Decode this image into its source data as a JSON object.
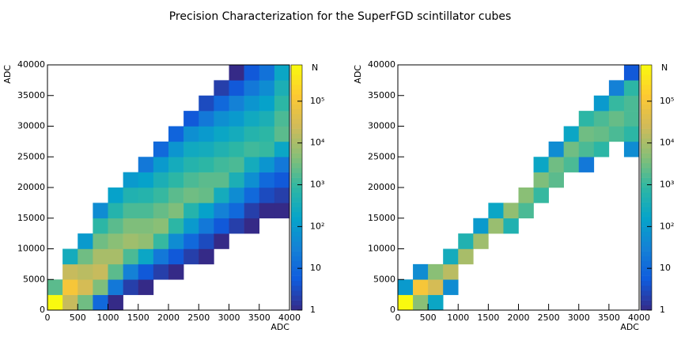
{
  "title": "Precision Characterization for the SuperFGD scintillator cubes",
  "chart_data": [
    {
      "type": "heatmap",
      "x_label": "ADC",
      "y_label": "ADC",
      "z_label": "N",
      "log_z": true,
      "xbins": [
        0,
        250,
        500,
        750,
        1000,
        1250,
        1500,
        1750,
        2000,
        2250,
        2500,
        2750,
        3000,
        3250,
        3500,
        3750,
        4000
      ],
      "ybins": [
        0,
        2500,
        5000,
        7500,
        10000,
        12500,
        15000,
        17500,
        20000,
        22500,
        25000,
        27500,
        30000,
        32500,
        35000,
        37500,
        40000
      ],
      "values": [
        [
          700000,
          2000,
          0,
          0,
          0,
          0,
          0,
          0,
          0,
          0,
          0,
          0,
          0,
          0,
          0,
          0
        ],
        [
          20000,
          100000,
          20000,
          300,
          0,
          0,
          0,
          0,
          0,
          0,
          0,
          0,
          0,
          0,
          0,
          0
        ],
        [
          3000,
          30000,
          15000,
          3000,
          100,
          0,
          0,
          0,
          0,
          0,
          0,
          0,
          0,
          0,
          0,
          0
        ],
        [
          10,
          4000,
          20000,
          10000,
          3000,
          800,
          50,
          0,
          0,
          0,
          0,
          0,
          0,
          0,
          0,
          0
        ],
        [
          1,
          20,
          2000,
          10000,
          5000,
          2000,
          600,
          150,
          0,
          0,
          0,
          0,
          0,
          0,
          0,
          0
        ],
        [
          0,
          2,
          30,
          1500,
          8000,
          4000,
          1500,
          500,
          100,
          0,
          0,
          0,
          0,
          0,
          0,
          0
        ],
        [
          0,
          1,
          5,
          200,
          6000,
          4000,
          1500,
          600,
          150,
          20,
          0,
          0,
          0,
          0,
          0,
          0
        ],
        [
          0,
          0,
          2,
          20,
          1000,
          5000,
          2500,
          1000,
          400,
          100,
          10,
          0,
          0,
          0,
          0,
          0
        ],
        [
          0,
          0,
          1,
          5,
          50,
          800,
          4000,
          2000,
          800,
          300,
          80,
          8,
          0,
          0,
          0,
          0
        ],
        [
          0,
          0,
          0,
          2,
          10,
          100,
          600,
          3000,
          1500,
          600,
          250,
          60,
          5,
          0,
          0,
          0
        ],
        [
          0,
          0,
          0,
          1,
          3,
          20,
          150,
          2500,
          2000,
          800,
          300,
          100,
          20,
          3,
          0,
          0
        ],
        [
          0,
          0,
          0,
          0,
          1,
          5,
          30,
          300,
          2000,
          1200,
          500,
          200,
          60,
          10,
          2,
          0
        ],
        [
          0,
          0,
          0,
          0,
          0,
          2,
          10,
          50,
          400,
          1500,
          800,
          300,
          100,
          30,
          5,
          1
        ],
        [
          0,
          0,
          0,
          0,
          0,
          1,
          2,
          10,
          60,
          300,
          1200,
          600,
          250,
          80,
          20,
          5
        ],
        [
          0,
          0,
          0,
          0,
          0,
          0,
          1,
          3,
          10,
          80,
          1000,
          800,
          400,
          150,
          50,
          15
        ],
        [
          0,
          0,
          0,
          0,
          0,
          0,
          1,
          2,
          5,
          20,
          200,
          2000,
          1500,
          800,
          400,
          200
        ]
      ],
      "xlim": [
        0,
        4000
      ],
      "ylim": [
        0,
        40000
      ],
      "zlim": [
        1,
        740000
      ],
      "xticks": [
        0,
        500,
        1000,
        1500,
        2000,
        2500,
        3000,
        3500,
        4000
      ],
      "yticks": [
        0,
        5000,
        10000,
        15000,
        20000,
        25000,
        30000,
        35000,
        40000
      ],
      "zticks": [
        1,
        10,
        {
          "value": 100,
          "label": "10²"
        },
        {
          "value": 1000,
          "label": "10³"
        },
        {
          "value": 10000,
          "label": "10⁴"
        },
        {
          "value": 100000,
          "label": "10⁵"
        }
      ]
    },
    {
      "type": "heatmap",
      "x_label": "ADC",
      "y_label": "ADC",
      "z_label": "N",
      "log_z": true,
      "xbins": [
        0,
        250,
        500,
        750,
        1000,
        1250,
        1500,
        1750,
        2000,
        2250,
        2500,
        2750,
        3000,
        3250,
        3500,
        3750,
        4000
      ],
      "ybins": [
        0,
        2500,
        5000,
        7500,
        10000,
        12500,
        15000,
        17500,
        20000,
        22500,
        25000,
        27500,
        30000,
        32500,
        35000,
        37500,
        40000
      ],
      "values": [
        [
          700000,
          100,
          0,
          0,
          0,
          0,
          0,
          0,
          0,
          0,
          0,
          0,
          0,
          0,
          0,
          0
        ],
        [
          5000,
          100000,
          50,
          0,
          0,
          0,
          0,
          0,
          0,
          0,
          0,
          0,
          0,
          0,
          0,
          0
        ],
        [
          200,
          30000,
          5000,
          0,
          0,
          0,
          0,
          0,
          0,
          0,
          0,
          0,
          0,
          0,
          0,
          0
        ],
        [
          0,
          50,
          15000,
          300,
          0,
          0,
          0,
          0,
          0,
          0,
          0,
          0,
          0,
          0,
          0,
          0
        ],
        [
          0,
          0,
          0,
          10000,
          500,
          0,
          0,
          0,
          0,
          0,
          0,
          0,
          0,
          0,
          0,
          0
        ],
        [
          0,
          0,
          0,
          0,
          8000,
          100,
          0,
          0,
          0,
          0,
          0,
          0,
          0,
          0,
          0,
          0
        ],
        [
          0,
          0,
          0,
          0,
          0,
          7000,
          200,
          0,
          0,
          0,
          0,
          0,
          0,
          0,
          0,
          0
        ],
        [
          0,
          0,
          0,
          0,
          0,
          500,
          6000,
          0,
          0,
          0,
          0,
          0,
          0,
          0,
          0,
          0
        ],
        [
          0,
          0,
          0,
          0,
          0,
          0,
          1500,
          5000,
          0,
          0,
          0,
          0,
          0,
          0,
          0,
          0
        ],
        [
          0,
          0,
          0,
          0,
          0,
          0,
          0,
          1000,
          4000,
          200,
          0,
          0,
          0,
          0,
          0,
          0
        ],
        [
          0,
          0,
          0,
          0,
          0,
          0,
          0,
          0,
          2000,
          3000,
          50,
          0,
          0,
          0,
          0,
          0
        ],
        [
          0,
          0,
          0,
          0,
          0,
          0,
          0,
          0,
          0,
          1500,
          3000,
          200,
          0,
          0,
          0,
          0
        ],
        [
          0,
          0,
          0,
          0,
          0,
          0,
          0,
          0,
          0,
          20,
          1500,
          3000,
          800,
          0,
          0,
          0
        ],
        [
          0,
          0,
          0,
          0,
          0,
          0,
          0,
          0,
          0,
          0,
          800,
          2500,
          1500,
          100,
          0,
          0
        ],
        [
          0,
          0,
          0,
          0,
          0,
          0,
          0,
          0,
          0,
          0,
          0,
          1500,
          2500,
          1000,
          30,
          0
        ],
        [
          0,
          0,
          0,
          0,
          0,
          0,
          0,
          0,
          0,
          0,
          50,
          800,
          1500,
          1500,
          800,
          5
        ]
      ],
      "xlim": [
        0,
        4000
      ],
      "ylim": [
        0,
        40000
      ],
      "zlim": [
        1,
        740000
      ],
      "xticks": [
        0,
        500,
        1000,
        1500,
        2000,
        2500,
        3000,
        3500,
        4000
      ],
      "yticks": [
        0,
        5000,
        10000,
        15000,
        20000,
        25000,
        30000,
        35000,
        40000
      ],
      "zticks": [
        1,
        10,
        {
          "value": 100,
          "label": "10²"
        },
        {
          "value": 1000,
          "label": "10³"
        },
        {
          "value": 10000,
          "label": "10⁴"
        },
        {
          "value": 100000,
          "label": "10⁵"
        }
      ]
    }
  ]
}
